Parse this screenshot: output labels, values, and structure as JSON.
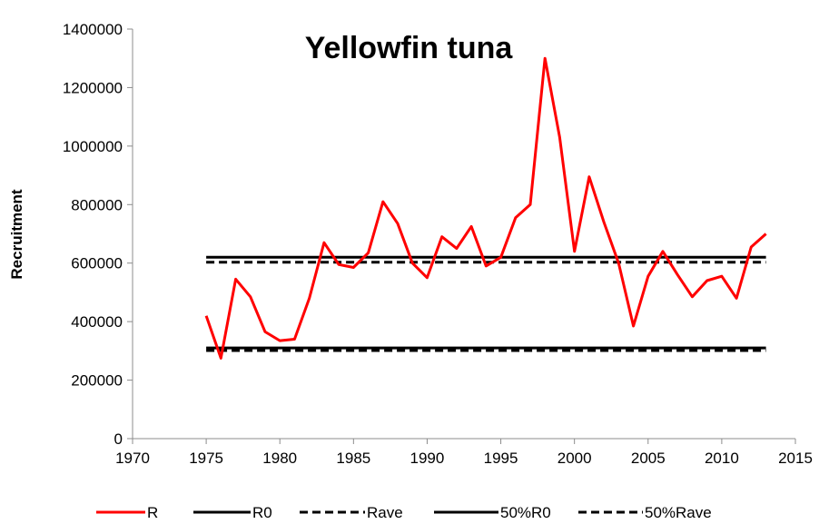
{
  "chart_data": {
    "type": "line",
    "title": "Yellowfin tuna",
    "xlabel": "",
    "ylabel": "Recruitment",
    "xlim": [
      1970,
      2015
    ],
    "ylim": [
      0,
      1400000
    ],
    "x_ticks": [
      1970,
      1975,
      1980,
      1985,
      1990,
      1995,
      2000,
      2005,
      2010,
      2015
    ],
    "y_ticks": [
      0,
      200000,
      400000,
      600000,
      800000,
      1000000,
      1200000,
      1400000
    ],
    "x_tick_labels": [
      "1970",
      "1975",
      "1980",
      "1985",
      "1990",
      "1995",
      "2000",
      "2005",
      "2010",
      "2015"
    ],
    "y_tick_labels": [
      "0",
      "200000",
      "400000",
      "600000",
      "800000",
      "1000000",
      "1200000",
      "1400000"
    ],
    "grid": false,
    "legend_position": "bottom",
    "series": [
      {
        "name": "R",
        "color": "#ff0000",
        "style": "solid",
        "x": [
          1975,
          1976,
          1977,
          1978,
          1979,
          1980,
          1981,
          1982,
          1983,
          1984,
          1985,
          1986,
          1987,
          1988,
          1989,
          1990,
          1991,
          1992,
          1993,
          1994,
          1995,
          1996,
          1997,
          1998,
          1999,
          2000,
          2001,
          2002,
          2003,
          2004,
          2005,
          2006,
          2007,
          2008,
          2009,
          2010,
          2011,
          2012,
          2013
        ],
        "y": [
          420000,
          275000,
          545000,
          485000,
          365000,
          335000,
          340000,
          480000,
          670000,
          595000,
          585000,
          635000,
          810000,
          735000,
          600000,
          550000,
          690000,
          650000,
          725000,
          590000,
          620000,
          755000,
          800000,
          1300000,
          1030000,
          640000,
          895000,
          740000,
          600000,
          385000,
          555000,
          640000,
          560000,
          485000,
          540000,
          555000,
          480000,
          655000,
          700000
        ]
      },
      {
        "name": "R0",
        "color": "#000000",
        "style": "solid",
        "x": [
          1975,
          2013
        ],
        "y": [
          620000,
          620000
        ]
      },
      {
        "name": "Rave",
        "color": "#000000",
        "style": "dashed",
        "x": [
          1975,
          2013
        ],
        "y": [
          603000,
          603000
        ]
      },
      {
        "name": "50%R0",
        "color": "#000000",
        "style": "solid",
        "x": [
          1975,
          2013
        ],
        "y": [
          310000,
          310000
        ]
      },
      {
        "name": "50%Rave",
        "color": "#000000",
        "style": "dashed",
        "x": [
          1975,
          2013
        ],
        "y": [
          301000,
          301000
        ]
      }
    ]
  }
}
